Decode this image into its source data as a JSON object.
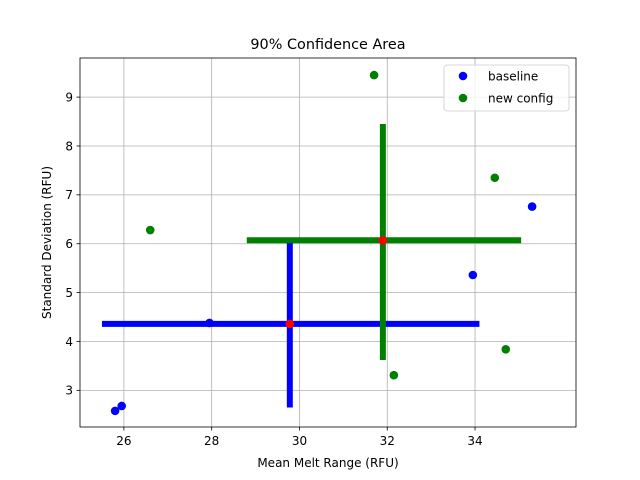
{
  "chart_data": {
    "type": "scatter",
    "title": "90% Confidence Area",
    "xlabel": "Mean Melt Range (RFU)",
    "ylabel": "Standard Deviation (RFU)",
    "xlim": [
      25.0,
      36.3
    ],
    "ylim": [
      2.25,
      9.8
    ],
    "xticks": [
      26,
      28,
      30,
      32,
      34
    ],
    "yticks": [
      3,
      4,
      5,
      6,
      7,
      8,
      9
    ],
    "grid": true,
    "legend_position": "top-right",
    "series": [
      {
        "name": "baseline",
        "color": "#0000ff",
        "points": [
          [
            25.8,
            2.58
          ],
          [
            25.95,
            2.68
          ],
          [
            27.95,
            4.38
          ],
          [
            33.95,
            5.36
          ],
          [
            35.3,
            6.76
          ]
        ]
      },
      {
        "name": "new config",
        "color": "#008000",
        "points": [
          [
            26.6,
            6.28
          ],
          [
            31.7,
            9.45
          ],
          [
            32.15,
            3.31
          ],
          [
            34.45,
            7.35
          ],
          [
            34.7,
            3.84
          ]
        ]
      }
    ],
    "confidence_crosses": [
      {
        "color": "#0000ff",
        "center": [
          29.78,
          4.36
        ],
        "horizontal": [
          25.5,
          34.1
        ],
        "vertical": [
          2.65,
          6.05
        ]
      },
      {
        "color": "#008000",
        "center": [
          31.9,
          6.07
        ],
        "horizontal": [
          28.8,
          35.05
        ],
        "vertical": [
          3.62,
          8.45
        ]
      }
    ],
    "center_marker_color": "#ff0000"
  }
}
